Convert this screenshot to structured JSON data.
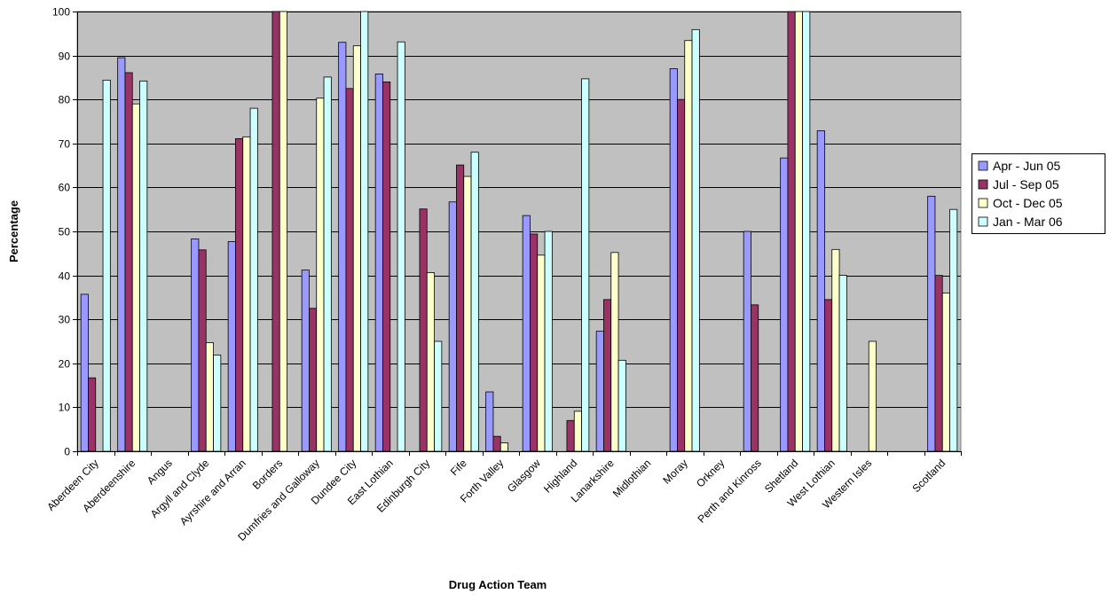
{
  "chart_data": {
    "type": "bar",
    "title": "",
    "xlabel": "Drug Action Team",
    "ylabel": "Percentage",
    "ylim": [
      0,
      100
    ],
    "yticks": [
      0,
      10,
      20,
      30,
      40,
      50,
      60,
      70,
      80,
      90,
      100
    ],
    "grid": true,
    "legend_position": "right",
    "plot_background": "#C0C0C0",
    "categories": [
      "Aberdeen City",
      "Aberdeenshire",
      "Angus",
      "Argyll and Clyde",
      "Ayrshire and Arran",
      "Borders",
      "Dumfries and Galloway",
      "Dundee City",
      "East Lothian",
      "Edinburgh City",
      "Fife",
      "Forth Valley",
      "Glasgow",
      "Highland",
      "Lanarkshire",
      "Midlothian",
      "Moray",
      "Orkney",
      "Perth and Kinross",
      "Shetland",
      "West Lothian",
      "Western Isles",
      "",
      "Scotland"
    ],
    "series": [
      {
        "name": "Apr - Jun 05",
        "color": "#9999FF",
        "values": [
          35.7,
          89.5,
          null,
          48.3,
          47.7,
          null,
          41.2,
          93.0,
          85.8,
          null,
          56.7,
          13.5,
          53.6,
          null,
          27.3,
          null,
          87.0,
          null,
          50.0,
          66.7,
          72.9,
          null,
          null,
          58.0
        ]
      },
      {
        "name": "Jul - Sep 05",
        "color": "#993366",
        "values": [
          16.7,
          86.1,
          null,
          45.8,
          71.1,
          100,
          32.5,
          82.5,
          84.0,
          55.1,
          65.1,
          3.4,
          49.4,
          7.0,
          34.5,
          null,
          80.0,
          null,
          33.3,
          100,
          34.5,
          null,
          null,
          40.0
        ]
      },
      {
        "name": "Oct - Dec 05",
        "color": "#FFFFCC",
        "values": [
          null,
          79.0,
          null,
          24.7,
          71.5,
          100,
          80.3,
          92.2,
          null,
          40.6,
          62.5,
          1.9,
          44.6,
          9.1,
          45.2,
          null,
          93.4,
          null,
          null,
          100,
          45.9,
          25.0,
          null,
          36.0
        ]
      },
      {
        "name": "Jan - Mar 06",
        "color": "#CCFFFF",
        "values": [
          84.4,
          84.2,
          null,
          21.9,
          78.0,
          null,
          85.1,
          100,
          93.1,
          25.0,
          68.0,
          null,
          50.0,
          84.7,
          20.7,
          null,
          95.9,
          null,
          null,
          100,
          40.0,
          null,
          null,
          55.0
        ]
      }
    ]
  }
}
